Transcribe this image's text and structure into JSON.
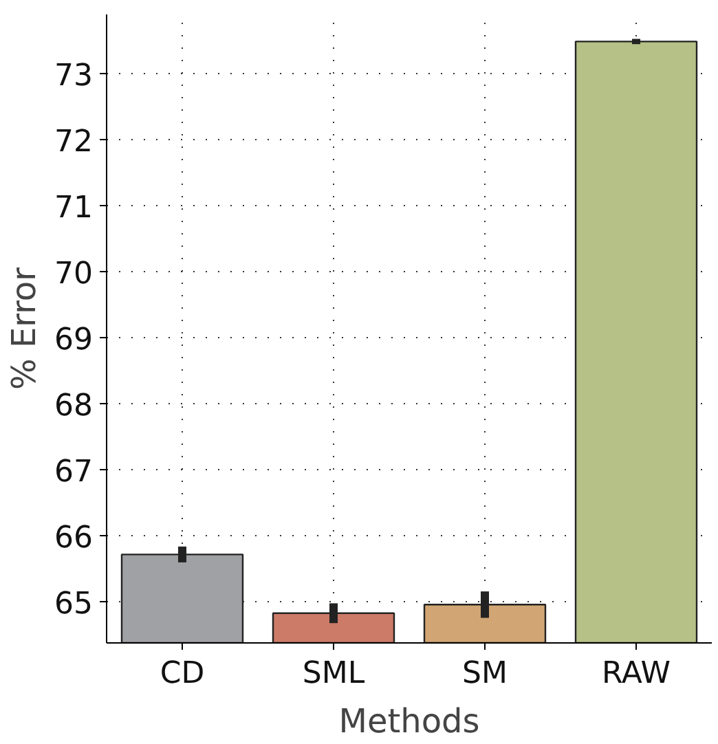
{
  "chart_data": {
    "type": "bar",
    "xlabel": "Methods",
    "ylabel": "% Error",
    "categories": [
      "CD",
      "SML",
      "SM",
      "RAW"
    ],
    "values": [
      65.72,
      64.83,
      64.96,
      73.49
    ],
    "colors": [
      "#a0a1a5",
      "#cc7b68",
      "#d1a574",
      "#b5c186"
    ],
    "errors": [
      0.12,
      0.15,
      0.2,
      0.04
    ],
    "ylim": [
      64.38,
      73.9
    ],
    "yticks": [
      65,
      66,
      67,
      68,
      69,
      70,
      71,
      72,
      73
    ],
    "grid": true
  }
}
